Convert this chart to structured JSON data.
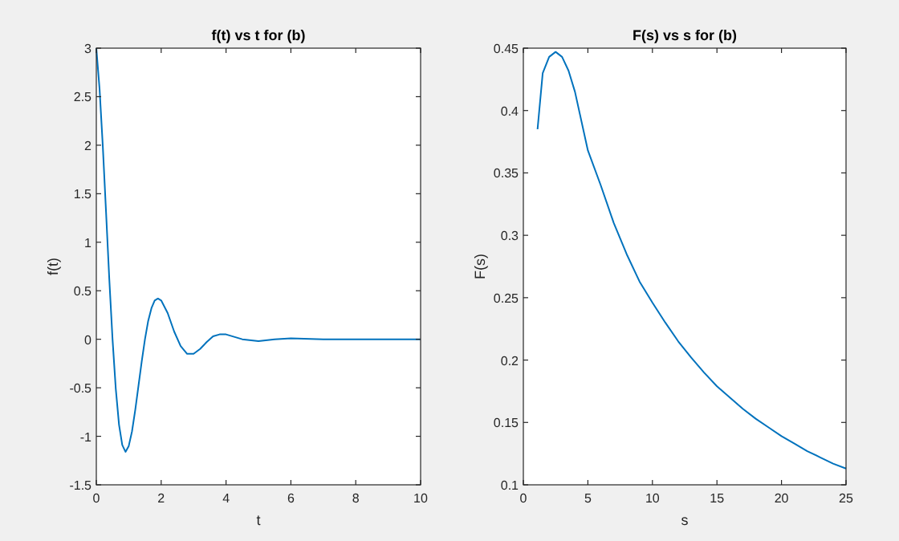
{
  "chart_data": [
    {
      "type": "line",
      "title": "f(t) vs t for (b)",
      "xlabel": "t",
      "ylabel": "f(t)",
      "xlim": [
        0,
        10
      ],
      "ylim": [
        -1.5,
        3
      ],
      "xticks": [
        0,
        2,
        4,
        6,
        8,
        10
      ],
      "yticks": [
        -1.5,
        -1,
        -0.5,
        0,
        0.5,
        1,
        1.5,
        2,
        2.5,
        3
      ],
      "x": [
        0,
        0.1,
        0.2,
        0.3,
        0.4,
        0.5,
        0.6,
        0.7,
        0.8,
        0.9,
        1,
        1.1,
        1.2,
        1.3,
        1.4,
        1.5,
        1.6,
        1.7,
        1.8,
        1.9,
        2,
        2.2,
        2.4,
        2.6,
        2.8,
        3,
        3.2,
        3.4,
        3.6,
        3.8,
        4,
        4.5,
        5,
        5.5,
        6,
        7,
        8,
        9,
        10
      ],
      "series": [
        {
          "color": "#0072bd",
          "values": [
            3,
            2.58,
            1.99,
            1.31,
            0.62,
            0,
            -0.51,
            -0.88,
            -1.09,
            -1.16,
            -1.1,
            -0.95,
            -0.73,
            -0.48,
            -0.23,
            0,
            0.19,
            0.32,
            0.4,
            0.42,
            0.4,
            0.27,
            0.08,
            -0.07,
            -0.15,
            -0.15,
            -0.1,
            -0.03,
            0.03,
            0.05,
            0.05,
            0,
            -0.02,
            0,
            0.01,
            0,
            0,
            0,
            0
          ]
        }
      ]
    },
    {
      "type": "line",
      "title": "F(s) vs s for (b)",
      "xlabel": "s",
      "ylabel": "F(s)",
      "xlim": [
        0,
        25
      ],
      "ylim": [
        0.1,
        0.45
      ],
      "xticks": [
        0,
        5,
        10,
        15,
        20,
        25
      ],
      "yticks": [
        0.1,
        0.15,
        0.2,
        0.25,
        0.3,
        0.35,
        0.4,
        0.45
      ],
      "x": [
        1.1,
        1.5,
        2,
        2.5,
        3,
        3.5,
        4,
        5,
        6,
        7,
        8,
        9,
        10,
        11,
        12,
        13,
        14,
        15,
        16,
        17,
        18,
        19,
        20,
        21,
        22,
        23,
        24,
        25
      ],
      "series": [
        {
          "color": "#0072bd",
          "values": [
            0.385,
            0.43,
            0.443,
            0.447,
            0.443,
            0.432,
            0.415,
            0.368,
            0.34,
            0.31,
            0.285,
            0.263,
            0.246,
            0.23,
            0.215,
            0.202,
            0.19,
            0.179,
            0.17,
            0.161,
            0.153,
            0.146,
            0.139,
            0.133,
            0.127,
            0.122,
            0.117,
            0.113
          ]
        }
      ]
    }
  ]
}
